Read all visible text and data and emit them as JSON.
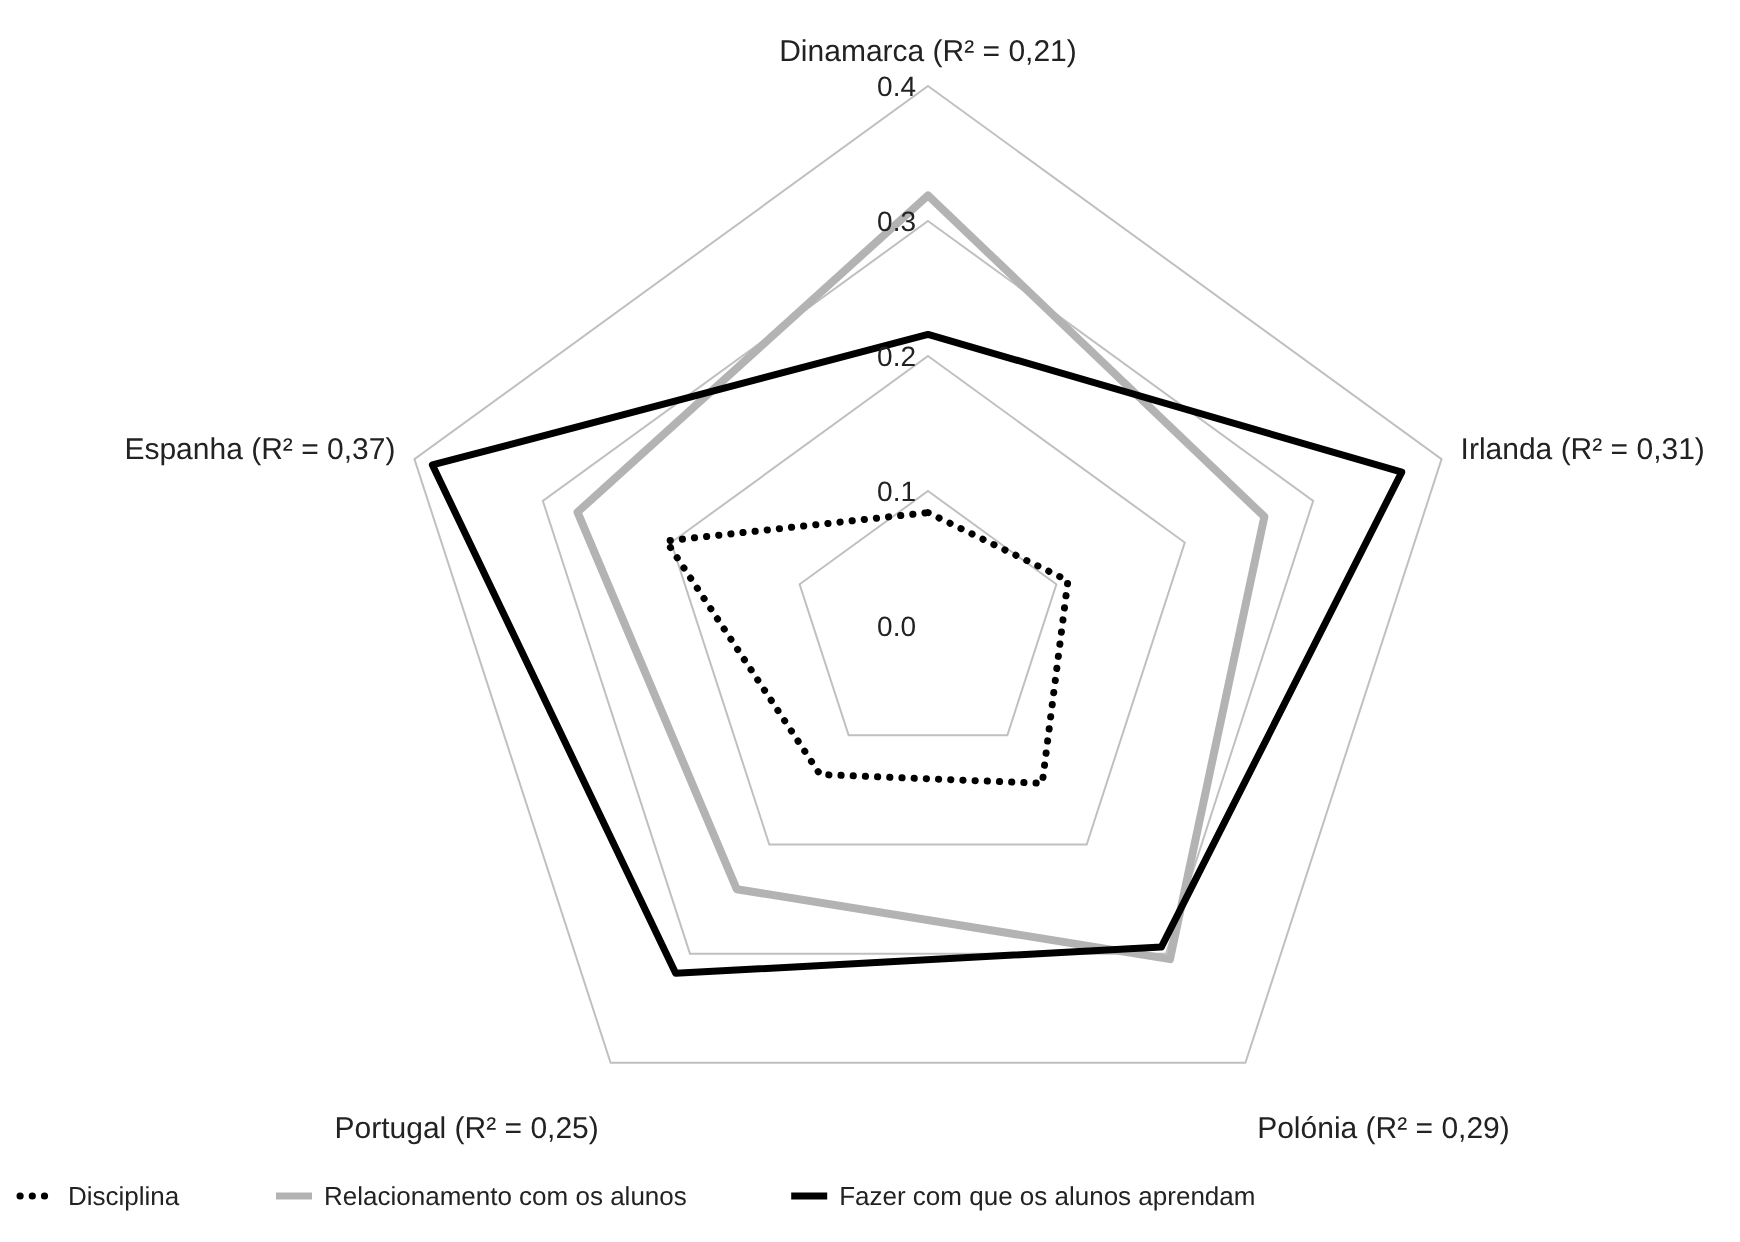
{
  "chart_data": {
    "type": "radar",
    "categories": [
      "Dinamarca (R² = 0,21)",
      "Irlanda (R² = 0,31)",
      "Polónia (R² = 0,29)",
      "Portugal (R² = 0,25)",
      "Espanha (R² = 0,37)"
    ],
    "ylim": [
      0,
      0.4
    ],
    "yticks": [
      {
        "value": 0,
        "label": "0.0"
      },
      {
        "value": 0.1,
        "label": "0.1"
      },
      {
        "value": 0.2,
        "label": "0.2"
      },
      {
        "value": 0.3,
        "label": "0.3"
      },
      {
        "value": 0.4,
        "label": "0.4"
      }
    ],
    "grid": true,
    "legend": "bottom",
    "marker": "none",
    "series": [
      {
        "name": "Disciplina",
        "color": "#000000",
        "line_style": "dotted",
        "values": [
          0.084,
          0.109,
          0.144,
          0.136,
          0.204
        ]
      },
      {
        "name": "Relacionamento com os alunos",
        "color": "#b3b3b3",
        "line_style": "solid",
        "values": [
          0.319,
          0.262,
          0.305,
          0.241,
          0.273
        ]
      },
      {
        "name": "Fazer com que os alunos aprendam",
        "color": "#000000",
        "line_style": "solid",
        "values": [
          0.216,
          0.369,
          0.294,
          0.318,
          0.386
        ]
      }
    ]
  }
}
